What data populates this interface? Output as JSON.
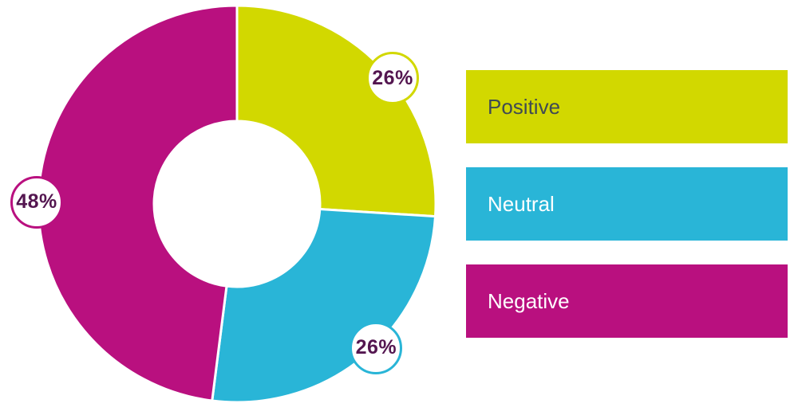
{
  "chart_data": {
    "type": "pie",
    "subtype": "donut",
    "title": "",
    "direction": "clockwise",
    "start_angle_deg": 0,
    "legend_position": "right",
    "grid": false,
    "categories": [
      "Positive",
      "Neutral",
      "Negative"
    ],
    "values": [
      26,
      26,
      48
    ],
    "series": [
      {
        "label": "Positive",
        "value": 26,
        "display": "26%",
        "color": "#d2d800",
        "legend_text_color": "#3f4a53"
      },
      {
        "label": "Neutral",
        "value": 26,
        "display": "26%",
        "color": "#29b5d7",
        "legend_text_color": "#ffffff"
      },
      {
        "label": "Negative",
        "value": 48,
        "display": "48%",
        "color": "#b9107f",
        "legend_text_color": "#ffffff"
      }
    ],
    "badge_text_color": "#541650",
    "badge_background": "#ffffff",
    "slice_separator_color": "#ffffff"
  }
}
